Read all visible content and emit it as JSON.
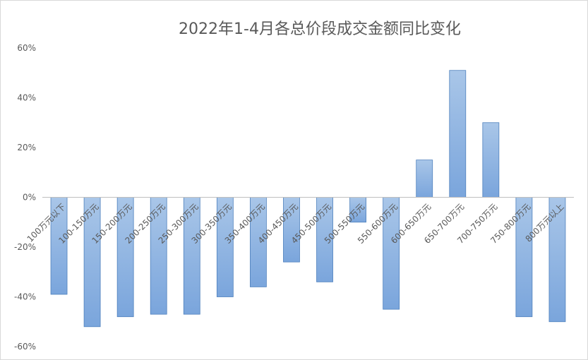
{
  "chart_data": {
    "type": "bar",
    "title": "2022年1-4月各总价段成交金额同比变化",
    "xlabel": "",
    "ylabel": "",
    "ylim": [
      -60,
      60
    ],
    "y_ticks": [
      "60%",
      "40%",
      "20%",
      "0%",
      "-20%",
      "-40%",
      "-60%"
    ],
    "y_tick_values": [
      60,
      40,
      20,
      0,
      -20,
      -40,
      -60
    ],
    "grid": false,
    "legend": "none",
    "categories": [
      "100万元以下",
      "100-150万元",
      "150-200万元",
      "200-250万元",
      "250-300万元",
      "300-350万元",
      "350-400万元",
      "400-450万元",
      "450-500万元",
      "500-550万元",
      "550-600万元",
      "600-650万元",
      "650-700万元",
      "700-750万元",
      "750-800万元",
      "800万元以上"
    ],
    "values": [
      -39,
      -52,
      -48,
      -47,
      -47,
      -40,
      -36,
      -26,
      -34,
      -10,
      -45,
      15,
      51,
      30,
      -48,
      -50
    ],
    "colors": {
      "bar_top": "#a9c6e8",
      "bar_bottom": "#7aa5dc",
      "bar_stroke": "#4f81bd",
      "axis": "#bfbfbf",
      "text": "#595959"
    }
  }
}
